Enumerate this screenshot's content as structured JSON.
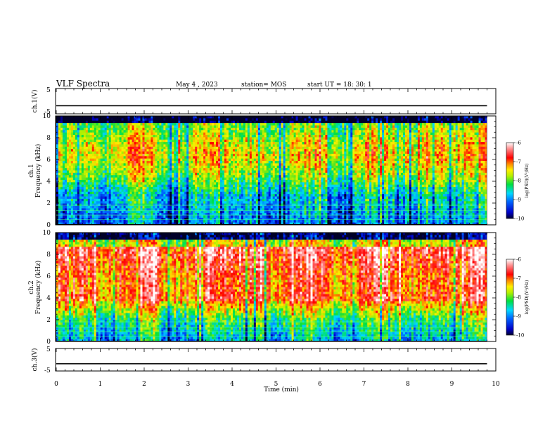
{
  "header": {
    "title": "VLF Spectra",
    "date": "May 4 , 2023",
    "station": "station= MOS",
    "start_ut": "start  UT =  18: 30: 1"
  },
  "chart_data": [
    {
      "type": "line",
      "name": "ch1-voltage",
      "ylabel": "ch.1(V)",
      "ylim": [
        -5,
        5
      ],
      "ytick_labels": [
        "5",
        "-5"
      ],
      "x": [
        0,
        10
      ],
      "values": [
        -1.8,
        -1.8
      ],
      "xlim": [
        0,
        10
      ]
    },
    {
      "type": "heatmap",
      "name": "ch1-spectrogram",
      "ylabel_top": "ch.1",
      "ylabel": "Frequency (kHz)",
      "ylim": [
        0,
        10
      ],
      "xlim": [
        0,
        10
      ],
      "data_xmax": 9.8,
      "ytick_labels": [
        "0",
        "2",
        "4",
        "6",
        "8",
        "10"
      ],
      "colorbar": {
        "label": "log(PSD)(V²/Hz)",
        "range": [
          -10,
          -6
        ],
        "tick_labels": [
          "-6",
          "-7",
          "-8",
          "-9",
          "-10"
        ]
      }
    },
    {
      "type": "heatmap",
      "name": "ch2-spectrogram",
      "ylabel_top": "ch.2",
      "ylabel": "Frequency (kHz)",
      "ylim": [
        0,
        10
      ],
      "xlim": [
        0,
        10
      ],
      "data_xmax": 9.8,
      "ytick_labels": [
        "0",
        "2",
        "4",
        "6",
        "8",
        "10"
      ],
      "colorbar": {
        "label": "log(PSD)(V²/Hz)",
        "range": [
          -10,
          -6
        ],
        "tick_labels": [
          "-6",
          "-7",
          "-8",
          "-9",
          "-10"
        ]
      }
    },
    {
      "type": "line",
      "name": "ch3-voltage",
      "ylabel": "ch.3(V)",
      "ylim": [
        -5,
        5
      ],
      "ytick_labels": [
        "5",
        "-5"
      ],
      "x": [
        0,
        10
      ],
      "values": [
        -1.8,
        -1.8
      ],
      "xlim": [
        0,
        10
      ],
      "xlabel": "Time  (min)",
      "xtick_labels": [
        "0",
        "1",
        "2",
        "3",
        "4",
        "5",
        "6",
        "7",
        "8",
        "9",
        "10"
      ]
    }
  ],
  "colors": {
    "heat_low": "#000000",
    "heat_mid": "#00e000",
    "heat_high": "#ff0000",
    "heat_max": "#ffffff"
  }
}
